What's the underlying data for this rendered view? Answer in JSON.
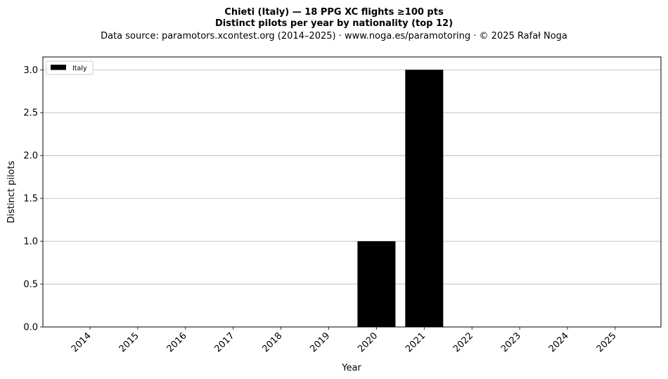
{
  "header": {
    "title": "Chieti (Italy)  —  18 PPG XC flights ≥100 pts",
    "subtitle": "Distinct pilots per year by nationality (top 12)",
    "source": "Data source: paramotors.xcontest.org (2014–2025)  ·  www.noga.es/paramotoring  ·  © 2025 Rafał Noga"
  },
  "chart_data": {
    "type": "bar",
    "title": "Chieti (Italy)  —  18 PPG XC flights ≥100 pts",
    "subtitle": "Distinct pilots per year by nationality (top 12)",
    "xlabel": "Year",
    "ylabel": "Distinct pilots",
    "categories": [
      "2014",
      "2015",
      "2016",
      "2017",
      "2018",
      "2019",
      "2020",
      "2021",
      "2022",
      "2023",
      "2024",
      "2025"
    ],
    "series": [
      {
        "name": "Italy",
        "color": "#000000",
        "values": [
          0,
          0,
          0,
          0,
          0,
          0,
          1,
          3,
          0,
          0,
          0,
          0
        ]
      }
    ],
    "ylim": [
      0,
      3.15
    ],
    "yticks": [
      "0.0",
      "0.5",
      "1.0",
      "1.5",
      "2.0",
      "2.5",
      "3.0"
    ],
    "grid": "horizontal",
    "legend_position": "top-left"
  }
}
